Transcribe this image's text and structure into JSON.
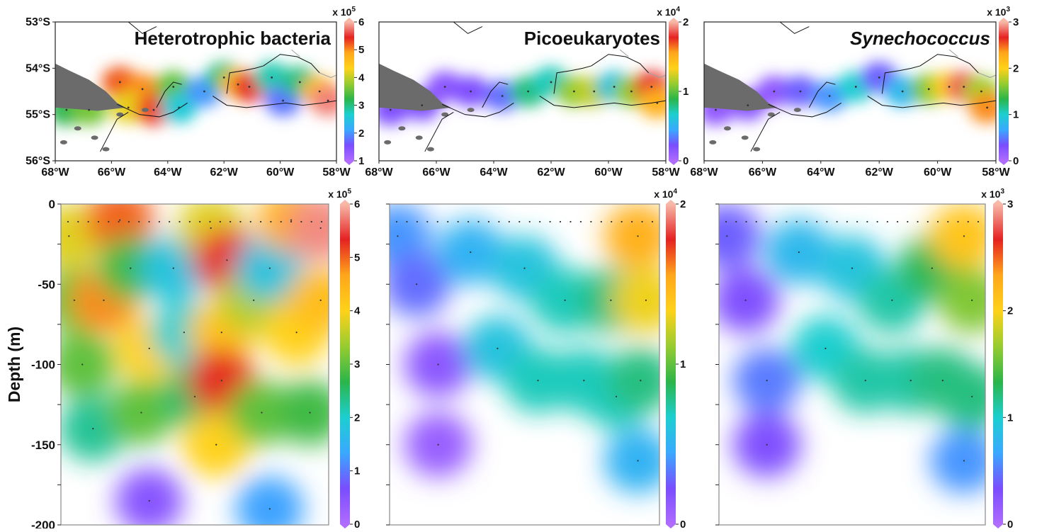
{
  "colors": {
    "land": "#6b6b6b",
    "coast": "#111111",
    "border": "#a0a0a0",
    "scale": [
      "#b06cff",
      "#7a4dff",
      "#3aa8ff",
      "#1ccfd0",
      "#2bb54a",
      "#97cc30",
      "#ffd21a",
      "#ffa61a",
      "#e52222",
      "#f7b8a8"
    ]
  },
  "chart_data": [
    {
      "type": "heatmap",
      "title": "Heterotrophic bacteria",
      "title_italic": false,
      "xlabel": "",
      "ylabel": "",
      "x_ticks": [
        "68°W",
        "66°W",
        "64°W",
        "62°W",
        "60°W",
        "58°W"
      ],
      "y_ticks": [
        "53°S",
        "54°S",
        "55°S",
        "56°S"
      ],
      "xlim": [
        -68,
        -58
      ],
      "ylim": [
        -56,
        -53
      ],
      "colorbar": {
        "multiplier": "x 10",
        "exponent": "5",
        "ticks": [
          "1",
          "2",
          "3",
          "4",
          "5",
          "6"
        ],
        "range": [
          1,
          6
        ]
      },
      "cells": [
        {
          "lon": -67.6,
          "lat": -54.9,
          "v": 3.2
        },
        {
          "lon": -66.8,
          "lat": -54.9,
          "v": 3.6
        },
        {
          "lon": -65.7,
          "lat": -54.3,
          "v": 5.2
        },
        {
          "lon": -64.9,
          "lat": -54.45,
          "v": 5.0
        },
        {
          "lon": -65.4,
          "lat": -54.85,
          "v": 4.2
        },
        {
          "lon": -64.5,
          "lat": -54.9,
          "v": 5.3
        },
        {
          "lon": -63.8,
          "lat": -54.4,
          "v": 3.5
        },
        {
          "lon": -63.6,
          "lat": -54.85,
          "v": 2.6
        },
        {
          "lon": -62.7,
          "lat": -54.5,
          "v": 2.0
        },
        {
          "lon": -62.0,
          "lat": -54.2,
          "v": 3.0
        },
        {
          "lon": -61.5,
          "lat": -54.35,
          "v": 4.5
        },
        {
          "lon": -61.1,
          "lat": -54.4,
          "v": 5.4
        },
        {
          "lon": -60.3,
          "lat": -54.2,
          "v": 2.8
        },
        {
          "lon": -59.9,
          "lat": -54.7,
          "v": 1.8
        },
        {
          "lon": -59.3,
          "lat": -54.3,
          "v": 3.0
        },
        {
          "lon": -58.6,
          "lat": -54.5,
          "v": 4.6
        },
        {
          "lon": -58.3,
          "lat": -54.7,
          "v": 5.8
        }
      ]
    },
    {
      "type": "heatmap",
      "title": "Picoeukaryotes",
      "title_italic": false,
      "xlabel": "",
      "ylabel": "",
      "x_ticks": [
        "68°W",
        "66°W",
        "64°W",
        "62°W",
        "60°W",
        "58°W"
      ],
      "y_ticks": [],
      "xlim": [
        -68,
        -58
      ],
      "ylim": [
        -56,
        -53
      ],
      "colorbar": {
        "multiplier": "x 10",
        "exponent": "4",
        "ticks": [
          "0",
          "1",
          "2"
        ],
        "range": [
          0,
          2
        ]
      },
      "cells": [
        {
          "lon": -67.6,
          "lat": -54.9,
          "v": 0.2
        },
        {
          "lon": -66.5,
          "lat": -54.8,
          "v": 0.2
        },
        {
          "lon": -65.7,
          "lat": -54.4,
          "v": 0.15
        },
        {
          "lon": -64.8,
          "lat": -54.5,
          "v": 0.2
        },
        {
          "lon": -63.7,
          "lat": -54.6,
          "v": 0.3
        },
        {
          "lon": -62.8,
          "lat": -54.5,
          "v": 0.8
        },
        {
          "lon": -62.0,
          "lat": -54.3,
          "v": 0.7
        },
        {
          "lon": -61.2,
          "lat": -54.5,
          "v": 1.1
        },
        {
          "lon": -60.5,
          "lat": -54.5,
          "v": 1.2
        },
        {
          "lon": -59.8,
          "lat": -54.4,
          "v": 0.6
        },
        {
          "lon": -59.2,
          "lat": -54.5,
          "v": 1.1
        },
        {
          "lon": -58.5,
          "lat": -54.4,
          "v": 1.8
        },
        {
          "lon": -58.3,
          "lat": -54.75,
          "v": 1.5
        }
      ]
    },
    {
      "type": "heatmap",
      "title": "Synechococcus",
      "title_italic": true,
      "xlabel": "",
      "ylabel": "",
      "x_ticks": [
        "68°W",
        "66°W",
        "64°W",
        "62°W",
        "60°W",
        "58°W"
      ],
      "y_ticks": [],
      "xlim": [
        -68,
        -58
      ],
      "ylim": [
        -56,
        -53
      ],
      "colorbar": {
        "multiplier": "x 10",
        "exponent": "3",
        "ticks": [
          "0",
          "1",
          "2",
          "3"
        ],
        "range": [
          0,
          3
        ]
      },
      "cells": [
        {
          "lon": -67.6,
          "lat": -54.9,
          "v": 0.2
        },
        {
          "lon": -66.5,
          "lat": -54.8,
          "v": 0.25
        },
        {
          "lon": -65.6,
          "lat": -54.5,
          "v": 0.2
        },
        {
          "lon": -64.7,
          "lat": -54.5,
          "v": 0.4
        },
        {
          "lon": -63.7,
          "lat": -54.6,
          "v": 0.6
        },
        {
          "lon": -62.8,
          "lat": -54.4,
          "v": 1.0
        },
        {
          "lon": -62.0,
          "lat": -54.2,
          "v": 0.4
        },
        {
          "lon": -61.2,
          "lat": -54.5,
          "v": 0.8
        },
        {
          "lon": -60.3,
          "lat": -54.45,
          "v": 1.6
        },
        {
          "lon": -59.6,
          "lat": -54.4,
          "v": 2.0
        },
        {
          "lon": -59.1,
          "lat": -54.4,
          "v": 2.8
        },
        {
          "lon": -58.5,
          "lat": -54.5,
          "v": 1.7
        },
        {
          "lon": -58.3,
          "lat": -54.85,
          "v": 2.4
        }
      ]
    },
    {
      "type": "heatmap",
      "title": "",
      "xlabel": "",
      "ylabel": "Depth (m)",
      "y_ticks": [
        "0",
        "-50",
        "-100",
        "-150",
        "-200"
      ],
      "ylim": [
        -200,
        0
      ],
      "colorbar": {
        "multiplier": "x 10",
        "exponent": "5",
        "ticks": [
          "0",
          "1",
          "2",
          "3",
          "4",
          "5",
          "6"
        ],
        "range": [
          0,
          6
        ]
      },
      "cells": [
        {
          "x": 0.03,
          "d": -20,
          "v": 3.8
        },
        {
          "x": 0.05,
          "d": -60,
          "v": 3.0
        },
        {
          "x": 0.08,
          "d": -100,
          "v": 3.0
        },
        {
          "x": 0.12,
          "d": -140,
          "v": 2.3
        },
        {
          "x": 0.22,
          "d": -10,
          "v": 5.0
        },
        {
          "x": 0.16,
          "d": -60,
          "v": 4.8
        },
        {
          "x": 0.26,
          "d": -40,
          "v": 2.8
        },
        {
          "x": 0.33,
          "d": -90,
          "v": 4.0
        },
        {
          "x": 0.3,
          "d": -130,
          "v": 3.0
        },
        {
          "x": 0.42,
          "d": -40,
          "v": 1.8
        },
        {
          "x": 0.46,
          "d": -80,
          "v": 2.0
        },
        {
          "x": 0.5,
          "d": -120,
          "v": 2.5
        },
        {
          "x": 0.56,
          "d": -15,
          "v": 3.8
        },
        {
          "x": 0.62,
          "d": -35,
          "v": 5.4
        },
        {
          "x": 0.6,
          "d": -80,
          "v": 4.2
        },
        {
          "x": 0.6,
          "d": -110,
          "v": 5.3
        },
        {
          "x": 0.58,
          "d": -150,
          "v": 4.0
        },
        {
          "x": 0.72,
          "d": -60,
          "v": 3.5
        },
        {
          "x": 0.78,
          "d": -40,
          "v": 1.8
        },
        {
          "x": 0.75,
          "d": -130,
          "v": 3.0
        },
        {
          "x": 0.86,
          "d": -10,
          "v": 4.5
        },
        {
          "x": 0.88,
          "d": -80,
          "v": 4.0
        },
        {
          "x": 0.93,
          "d": -130,
          "v": 2.8
        },
        {
          "x": 0.97,
          "d": -15,
          "v": 5.8
        },
        {
          "x": 0.97,
          "d": -60,
          "v": 4.3
        },
        {
          "x": 0.33,
          "d": -185,
          "v": 0.5
        },
        {
          "x": 0.78,
          "d": -190,
          "v": 1.3
        }
      ]
    },
    {
      "type": "heatmap",
      "title": "",
      "xlabel": "",
      "ylabel": "",
      "y_ticks": [],
      "ylim": [
        -200,
        0
      ],
      "colorbar": {
        "multiplier": "x 10",
        "exponent": "4",
        "ticks": [
          "0",
          "1",
          "2"
        ],
        "range": [
          0,
          2
        ]
      },
      "cells": [
        {
          "x": 0.03,
          "d": -20,
          "v": 0.4
        },
        {
          "x": 0.1,
          "d": -50,
          "v": 0.3
        },
        {
          "x": 0.18,
          "d": -100,
          "v": 0.15
        },
        {
          "x": 0.18,
          "d": -150,
          "v": 0.1
        },
        {
          "x": 0.3,
          "d": -30,
          "v": 0.5
        },
        {
          "x": 0.4,
          "d": -90,
          "v": 0.6
        },
        {
          "x": 0.5,
          "d": -40,
          "v": 0.6
        },
        {
          "x": 0.55,
          "d": -110,
          "v": 0.7
        },
        {
          "x": 0.65,
          "d": -60,
          "v": 0.7
        },
        {
          "x": 0.72,
          "d": -110,
          "v": 0.7
        },
        {
          "x": 0.82,
          "d": -60,
          "v": 0.8
        },
        {
          "x": 0.84,
          "d": -120,
          "v": 0.7
        },
        {
          "x": 0.92,
          "d": -20,
          "v": 1.5
        },
        {
          "x": 0.95,
          "d": -60,
          "v": 1.3
        },
        {
          "x": 0.93,
          "d": -110,
          "v": 0.8
        },
        {
          "x": 0.92,
          "d": -160,
          "v": 0.5
        }
      ]
    },
    {
      "type": "heatmap",
      "title": "",
      "xlabel": "",
      "ylabel": "",
      "y_ticks": [],
      "ylim": [
        -200,
        0
      ],
      "colorbar": {
        "multiplier": "x 10",
        "exponent": "3",
        "ticks": [
          "0",
          "1",
          "2",
          "3"
        ],
        "range": [
          0,
          3
        ]
      },
      "cells": [
        {
          "x": 0.03,
          "d": -20,
          "v": 0.4
        },
        {
          "x": 0.1,
          "d": -60,
          "v": 0.3
        },
        {
          "x": 0.18,
          "d": -110,
          "v": 0.5
        },
        {
          "x": 0.18,
          "d": -150,
          "v": 0.3
        },
        {
          "x": 0.3,
          "d": -30,
          "v": 0.8
        },
        {
          "x": 0.4,
          "d": -90,
          "v": 1.0
        },
        {
          "x": 0.5,
          "d": -40,
          "v": 0.9
        },
        {
          "x": 0.55,
          "d": -110,
          "v": 1.1
        },
        {
          "x": 0.65,
          "d": -60,
          "v": 1.1
        },
        {
          "x": 0.72,
          "d": -110,
          "v": 1.1
        },
        {
          "x": 0.8,
          "d": -40,
          "v": 1.3
        },
        {
          "x": 0.84,
          "d": -110,
          "v": 1.2
        },
        {
          "x": 0.92,
          "d": -20,
          "v": 2.1
        },
        {
          "x": 0.95,
          "d": -60,
          "v": 1.6
        },
        {
          "x": 0.95,
          "d": -120,
          "v": 1.2
        },
        {
          "x": 0.92,
          "d": -160,
          "v": 0.6
        }
      ]
    }
  ]
}
